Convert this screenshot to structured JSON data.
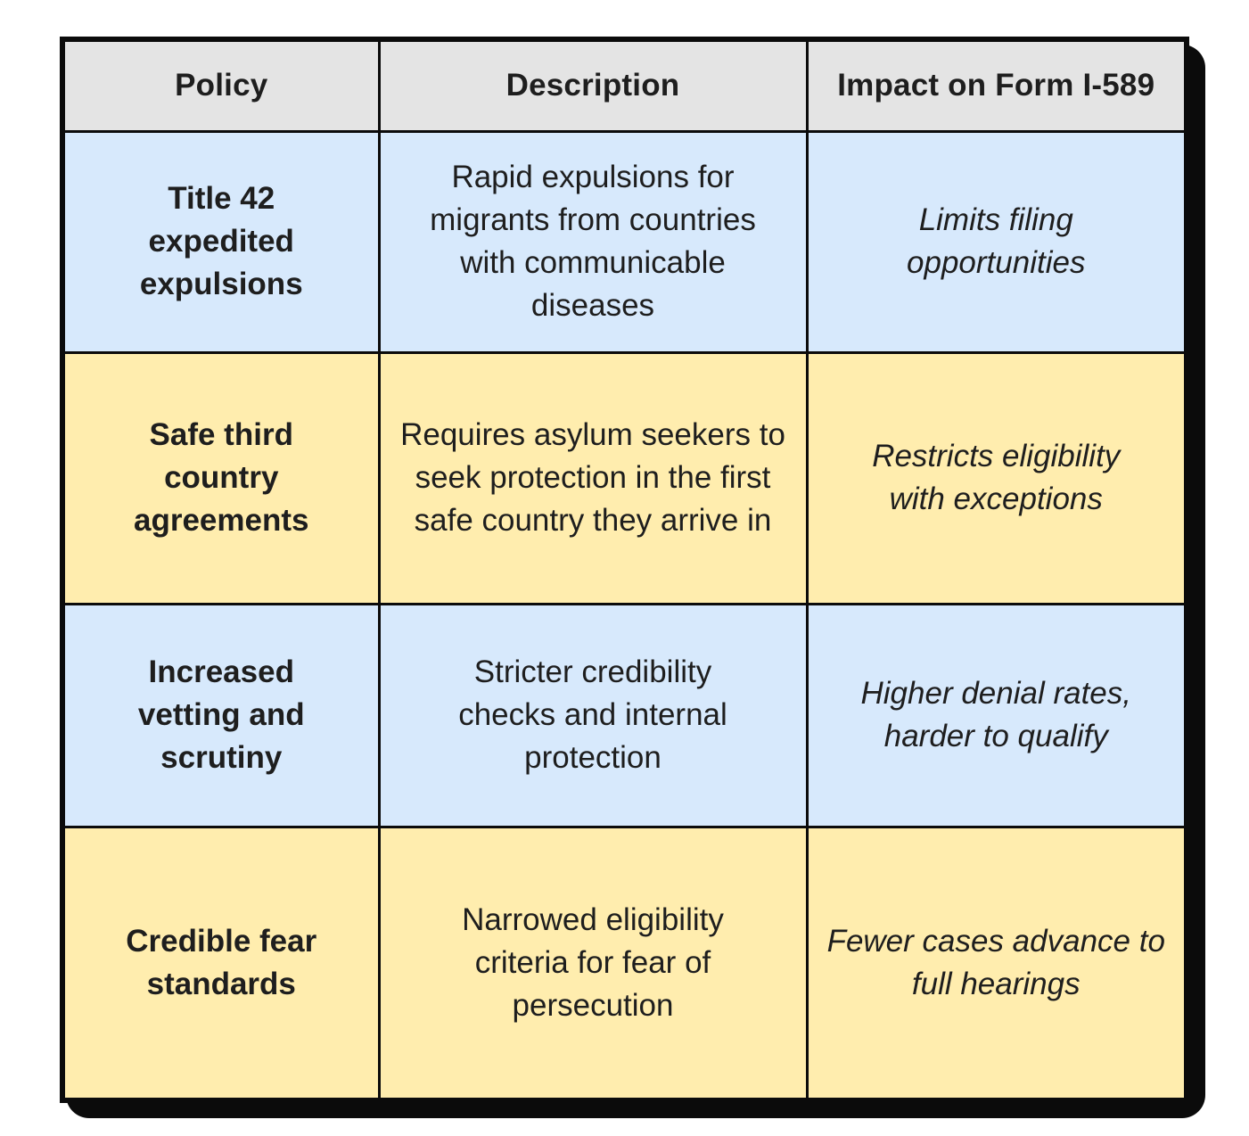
{
  "colors": {
    "header_bg": "#e4e4e4",
    "row_blue": "#d7e9fc",
    "row_yellow": "#ffedae",
    "border": "#0b0b0b",
    "text": "#1e1e1e",
    "page_bg": "#ffffff"
  },
  "chart_data": {
    "type": "table",
    "columns": [
      "Policy",
      "Description",
      "Impact on Form I-589"
    ],
    "rows": [
      [
        "Title 42 expedited expulsions",
        "Rapid expulsions for migrants from countries with communicable diseases",
        "Limits filing opportunities"
      ],
      [
        "Safe third country agreements",
        "Requires asylum seekers to seek protection in the first safe country they arrive in",
        "Restricts eligibility with exceptions"
      ],
      [
        "Increased vetting and scrutiny",
        "Stricter credibility checks and internal protection",
        "Higher denial rates, harder to qualify"
      ],
      [
        "Credible fear standards",
        "Narrowed eligibility criteria for fear of persecution",
        "Fewer cases advance to full hearings"
      ]
    ],
    "row_tones": [
      "blue",
      "yellow",
      "blue",
      "yellow"
    ],
    "legend_position": "none",
    "grid": true
  }
}
